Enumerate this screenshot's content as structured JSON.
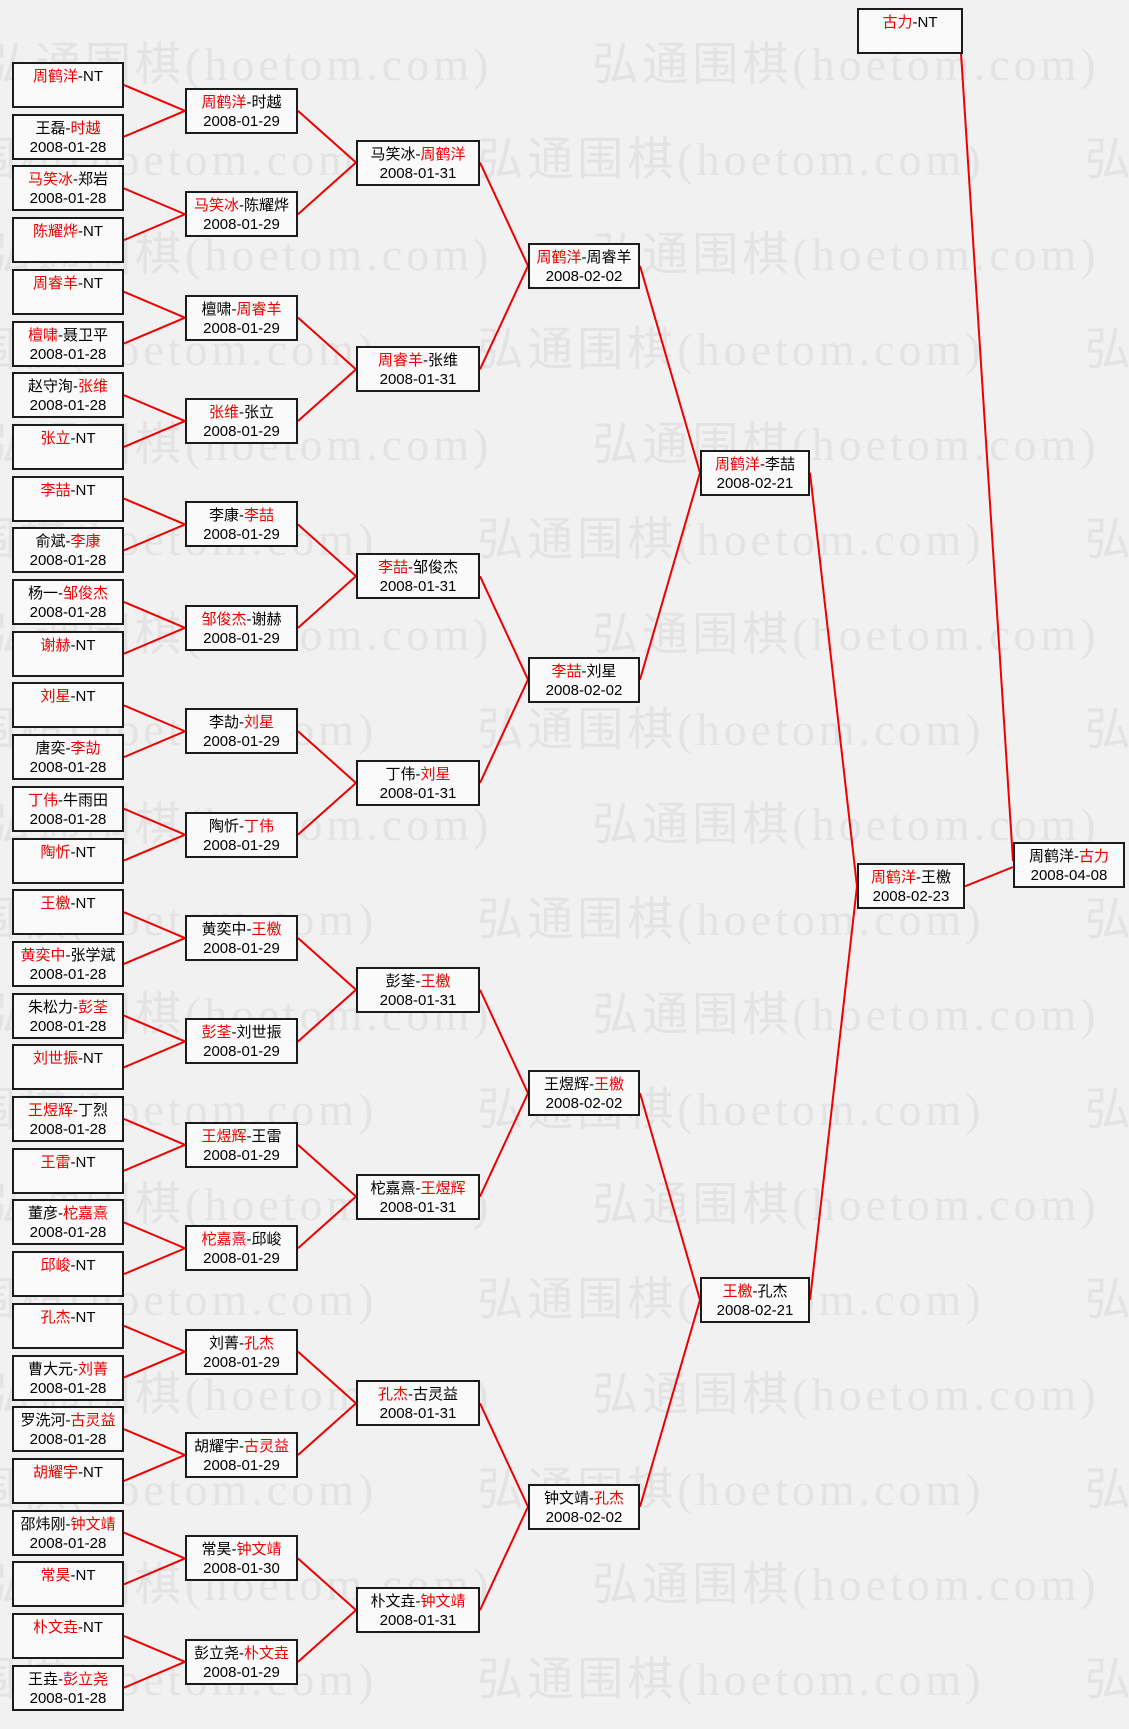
{
  "watermark": {
    "text": "弘通围棋(hoetom.com)"
  },
  "colors": {
    "page_bg": "#f1f1f1",
    "watermark": "#e3e3e3",
    "winner_red": "#ee0000",
    "connector_line": "#ee0000",
    "box_border": "#1b1b1b",
    "box_bg": "#fafafa",
    "text": "#000000"
  },
  "bracket": {
    "bye_label": "NT",
    "rounds": [
      {
        "round": 1,
        "matches": [
          {
            "p1": "周鹤洋",
            "p2": "NT",
            "winner": 1,
            "date": ""
          },
          {
            "p1": "王磊",
            "p2": "时越",
            "winner": 2,
            "date": "2008-01-28"
          },
          {
            "p1": "马笑冰",
            "p2": "郑岩",
            "winner": 1,
            "date": "2008-01-28"
          },
          {
            "p1": "陈耀烨",
            "p2": "NT",
            "winner": 1,
            "date": ""
          },
          {
            "p1": "周睿羊",
            "p2": "NT",
            "winner": 1,
            "date": ""
          },
          {
            "p1": "檀啸",
            "p2": "聂卫平",
            "winner": 1,
            "date": "2008-01-28"
          },
          {
            "p1": "赵守洵",
            "p2": "张维",
            "winner": 2,
            "date": "2008-01-28"
          },
          {
            "p1": "张立",
            "p2": "NT",
            "winner": 1,
            "date": ""
          },
          {
            "p1": "李喆",
            "p2": "NT",
            "winner": 1,
            "date": ""
          },
          {
            "p1": "俞斌",
            "p2": "李康",
            "winner": 2,
            "date": "2008-01-28"
          },
          {
            "p1": "杨一",
            "p2": "邹俊杰",
            "winner": 2,
            "date": "2008-01-28"
          },
          {
            "p1": "谢赫",
            "p2": "NT",
            "winner": 1,
            "date": ""
          },
          {
            "p1": "刘星",
            "p2": "NT",
            "winner": 1,
            "date": ""
          },
          {
            "p1": "唐奕",
            "p2": "李劼",
            "winner": 2,
            "date": "2008-01-28"
          },
          {
            "p1": "丁伟",
            "p2": "牛雨田",
            "winner": 1,
            "date": "2008-01-28"
          },
          {
            "p1": "陶忻",
            "p2": "NT",
            "winner": 1,
            "date": ""
          },
          {
            "p1": "王檄",
            "p2": "NT",
            "winner": 1,
            "date": ""
          },
          {
            "p1": "黄奕中",
            "p2": "张学斌",
            "winner": 1,
            "date": "2008-01-28"
          },
          {
            "p1": "朱松力",
            "p2": "彭荃",
            "winner": 2,
            "date": "2008-01-28"
          },
          {
            "p1": "刘世振",
            "p2": "NT",
            "winner": 1,
            "date": ""
          },
          {
            "p1": "王煜辉",
            "p2": "丁烈",
            "winner": 1,
            "date": "2008-01-28"
          },
          {
            "p1": "王雷",
            "p2": "NT",
            "winner": 1,
            "date": ""
          },
          {
            "p1": "董彦",
            "p2": "柁嘉熹",
            "winner": 2,
            "date": "2008-01-28"
          },
          {
            "p1": "邱峻",
            "p2": "NT",
            "winner": 1,
            "date": ""
          },
          {
            "p1": "孔杰",
            "p2": "NT",
            "winner": 1,
            "date": ""
          },
          {
            "p1": "曹大元",
            "p2": "刘菁",
            "winner": 2,
            "date": "2008-01-28"
          },
          {
            "p1": "罗洗河",
            "p2": "古灵益",
            "winner": 2,
            "date": "2008-01-28"
          },
          {
            "p1": "胡耀宇",
            "p2": "NT",
            "winner": 1,
            "date": ""
          },
          {
            "p1": "邵炜刚",
            "p2": "钟文靖",
            "winner": 2,
            "date": "2008-01-28"
          },
          {
            "p1": "常昊",
            "p2": "NT",
            "winner": 1,
            "date": ""
          },
          {
            "p1": "朴文垚",
            "p2": "NT",
            "winner": 1,
            "date": ""
          },
          {
            "p1": "王垚",
            "p2": "彭立尧",
            "winner": 2,
            "date": "2008-01-28"
          }
        ]
      },
      {
        "round": 2,
        "matches": [
          {
            "p1": "周鹤洋",
            "p2": "时越",
            "winner": 1,
            "date": "2008-01-29"
          },
          {
            "p1": "马笑冰",
            "p2": "陈耀烨",
            "winner": 1,
            "date": "2008-01-29"
          },
          {
            "p1": "檀啸",
            "p2": "周睿羊",
            "winner": 2,
            "date": "2008-01-29"
          },
          {
            "p1": "张维",
            "p2": "张立",
            "winner": 1,
            "date": "2008-01-29"
          },
          {
            "p1": "李康",
            "p2": "李喆",
            "winner": 2,
            "date": "2008-01-29"
          },
          {
            "p1": "邹俊杰",
            "p2": "谢赫",
            "winner": 1,
            "date": "2008-01-29"
          },
          {
            "p1": "李劼",
            "p2": "刘星",
            "winner": 2,
            "date": "2008-01-29"
          },
          {
            "p1": "陶忻",
            "p2": "丁伟",
            "winner": 2,
            "date": "2008-01-29"
          },
          {
            "p1": "黄奕中",
            "p2": "王檄",
            "winner": 2,
            "date": "2008-01-29"
          },
          {
            "p1": "彭荃",
            "p2": "刘世振",
            "winner": 1,
            "date": "2008-01-29"
          },
          {
            "p1": "王煜辉",
            "p2": "王雷",
            "winner": 1,
            "date": "2008-01-29"
          },
          {
            "p1": "柁嘉熹",
            "p2": "邱峻",
            "winner": 1,
            "date": "2008-01-29"
          },
          {
            "p1": "刘菁",
            "p2": "孔杰",
            "winner": 2,
            "date": "2008-01-29"
          },
          {
            "p1": "胡耀宇",
            "p2": "古灵益",
            "winner": 2,
            "date": "2008-01-29"
          },
          {
            "p1": "常昊",
            "p2": "钟文靖",
            "winner": 2,
            "date": "2008-01-30"
          },
          {
            "p1": "彭立尧",
            "p2": "朴文垚",
            "winner": 2,
            "date": "2008-01-29"
          }
        ]
      },
      {
        "round": 3,
        "matches": [
          {
            "p1": "马笑冰",
            "p2": "周鹤洋",
            "winner": 2,
            "date": "2008-01-31"
          },
          {
            "p1": "周睿羊",
            "p2": "张维",
            "winner": 1,
            "date": "2008-01-31"
          },
          {
            "p1": "李喆",
            "p2": "邹俊杰",
            "winner": 1,
            "date": "2008-01-31"
          },
          {
            "p1": "丁伟",
            "p2": "刘星",
            "winner": 2,
            "date": "2008-01-31"
          },
          {
            "p1": "彭荃",
            "p2": "王檄",
            "winner": 2,
            "date": "2008-01-31"
          },
          {
            "p1": "柁嘉熹",
            "p2": "王煜辉",
            "winner": 2,
            "date": "2008-01-31"
          },
          {
            "p1": "孔杰",
            "p2": "古灵益",
            "winner": 1,
            "date": "2008-01-31"
          },
          {
            "p1": "朴文垚",
            "p2": "钟文靖",
            "winner": 2,
            "date": "2008-01-31"
          }
        ]
      },
      {
        "round": 4,
        "matches": [
          {
            "p1": "周鹤洋",
            "p2": "周睿羊",
            "winner": 1,
            "date": "2008-02-02"
          },
          {
            "p1": "李喆",
            "p2": "刘星",
            "winner": 1,
            "date": "2008-02-02"
          },
          {
            "p1": "王煜辉",
            "p2": "王檄",
            "winner": 2,
            "date": "2008-02-02"
          },
          {
            "p1": "钟文靖",
            "p2": "孔杰",
            "winner": 2,
            "date": "2008-02-02"
          }
        ]
      },
      {
        "round": 5,
        "matches": [
          {
            "p1": "周鹤洋",
            "p2": "李喆",
            "winner": 1,
            "date": "2008-02-21"
          },
          {
            "p1": "王檄",
            "p2": "孔杰",
            "winner": 1,
            "date": "2008-02-21"
          }
        ]
      },
      {
        "round": 6,
        "matches": [
          {
            "p1": "周鹤洋",
            "p2": "王檄",
            "winner": 1,
            "date": "2008-02-23"
          }
        ]
      }
    ],
    "bye_to_final": {
      "p1": "古力",
      "p2": "NT",
      "winner": 1,
      "date": ""
    },
    "final": {
      "p1": "周鹤洋",
      "p2": "古力",
      "winner": 2,
      "date": "2008-04-08"
    }
  }
}
